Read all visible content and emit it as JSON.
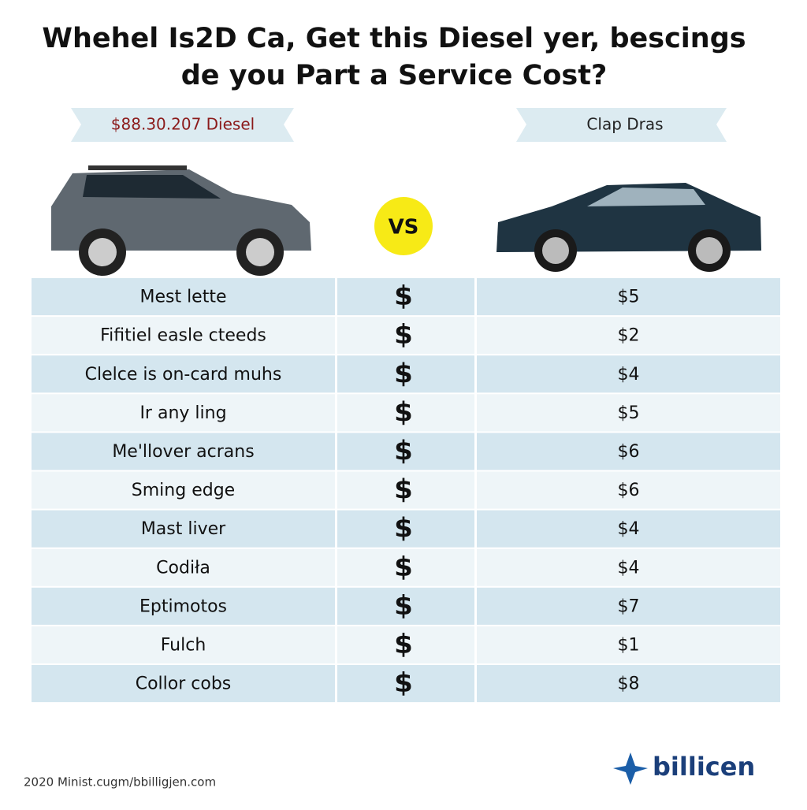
{
  "header": {
    "title": [
      "Whehel Is2D Ca, Get this Diesel yer, bescings",
      "de you Part a Service Cost?"
    ]
  },
  "left_label": "$88.30.207 Diesel",
  "right_label": "Clap Dras",
  "vs": "VS",
  "table": {
    "rows": [
      [
        "Mest lette",
        "$",
        "$5"
      ],
      [
        "Fifitiel easle cteeds",
        "$",
        "$2"
      ],
      [
        "Clelce is on-card muhs",
        "$",
        "$4"
      ],
      [
        "Ir any ling",
        "$",
        "$5"
      ],
      [
        "Me'llover acrans",
        "$",
        "$6"
      ],
      [
        "Sming edge",
        "$",
        "$6"
      ],
      [
        "Mast liver",
        "$",
        "$4"
      ],
      [
        "Codiła",
        "$",
        "$4"
      ],
      [
        "Eptimotos",
        "$",
        "$7"
      ],
      [
        "Fulch",
        "$",
        "$1"
      ],
      [
        "Collor cobs",
        "$",
        "$8"
      ]
    ]
  },
  "footer": "2020 Minist.cugm/bbilligjen.com",
  "logo": "billicen"
}
